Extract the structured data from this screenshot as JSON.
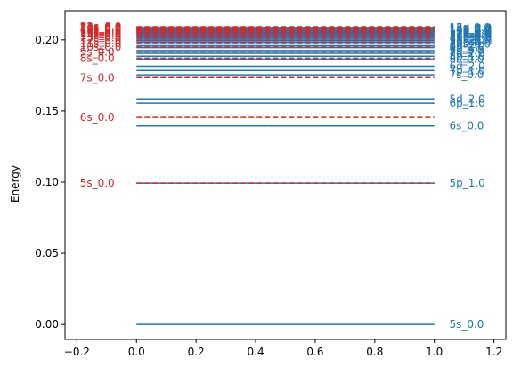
{
  "chart_data": {
    "type": "line",
    "title": "",
    "xlabel": "",
    "ylabel": "Energy",
    "xlim": [
      -0.24,
      1.24
    ],
    "ylim": [
      -0.0105,
      0.2205
    ],
    "grid": false,
    "legend": "none",
    "xticks": [
      -0.2,
      0.0,
      0.2,
      0.4,
      0.6,
      0.8,
      1.0,
      1.2
    ],
    "xtick_labels": [
      "−0.2",
      "0.0",
      "0.2",
      "0.4",
      "0.6",
      "0.8",
      "1.0",
      "1.2"
    ],
    "yticks": [
      0.0,
      0.05,
      0.1,
      0.15,
      0.2
    ],
    "ytick_labels": [
      "0.00",
      "0.05",
      "0.10",
      "0.15",
      "0.20"
    ],
    "colors": {
      "blue": "#1f77b4",
      "red": "#d62728"
    },
    "series": [
      {
        "color": "#1f77b4",
        "style": "solid",
        "x": [
          0.0,
          1.0
        ],
        "label_x": 1.05,
        "levels": [
          {
            "label": "5s_0.0",
            "y": 0.0
          },
          {
            "label": "5p_1.0",
            "y": 0.0993
          },
          {
            "label": "6s_0.0",
            "y": 0.1395
          },
          {
            "label": "6p_1.0",
            "y": 0.1555
          },
          {
            "label": "5d_2.0",
            "y": 0.1585
          },
          {
            "label": "7s_0.0",
            "y": 0.1755
          },
          {
            "label": "7p_1.0",
            "y": 0.1785
          },
          {
            "label": "6d_2.0",
            "y": 0.1815
          },
          {
            "label": "8s_0.0",
            "y": 0.1865
          },
          {
            "label": "8p_1.0",
            "y": 0.1885
          },
          {
            "label": "7d_2.0",
            "y": 0.1905
          },
          {
            "label": "9s_0.0",
            "y": 0.1925
          },
          {
            "label": "9p_1.0",
            "y": 0.1945
          },
          {
            "label": "8d_2.0",
            "y": 0.1958
          },
          {
            "label": "10s_0.0",
            "y": 0.1972
          },
          {
            "label": "10p_1.0",
            "y": 0.1985
          },
          {
            "label": "9d_2.0",
            "y": 0.1996
          },
          {
            "label": "11s_0.0",
            "y": 0.2006
          },
          {
            "label": "11p_1.0",
            "y": 0.2015
          },
          {
            "label": "10d_2.0",
            "y": 0.2024
          },
          {
            "label": "12s_0.0",
            "y": 0.2032
          },
          {
            "label": "12p_1.0",
            "y": 0.204
          },
          {
            "label": "11d_2.0",
            "y": 0.2047
          },
          {
            "label": "13s_0.0",
            "y": 0.2054
          },
          {
            "label": "13p_1.0",
            "y": 0.206
          },
          {
            "label": "12d_2.0",
            "y": 0.2066
          },
          {
            "label": "14s_0.0",
            "y": 0.2072
          },
          {
            "label": "14p_1.0",
            "y": 0.2077
          },
          {
            "label": "13d_2.0",
            "y": 0.2082
          },
          {
            "label": "15s_0.0",
            "y": 0.2087
          }
        ]
      },
      {
        "color": "#d62728",
        "style": "dashed",
        "x": [
          0.0,
          1.0
        ],
        "label_x": -0.19,
        "levels": [
          {
            "label": "5s_0.0",
            "y": 0.0993
          },
          {
            "label": "6s_0.0",
            "y": 0.1455
          },
          {
            "label": "7s_0.0",
            "y": 0.1735
          },
          {
            "label": "8s_0.0",
            "y": 0.1872
          },
          {
            "label": "9s_0.0",
            "y": 0.1915
          },
          {
            "label": "10s_0.0",
            "y": 0.1948
          },
          {
            "label": "11s_0.0",
            "y": 0.1975
          },
          {
            "label": "12s_0.0",
            "y": 0.1997
          },
          {
            "label": "13s_0.0",
            "y": 0.2015
          },
          {
            "label": "14s_0.0",
            "y": 0.203
          },
          {
            "label": "15s_0.0",
            "y": 0.2043
          },
          {
            "label": "16s_0.0",
            "y": 0.2054
          },
          {
            "label": "17s_0.0",
            "y": 0.2063
          },
          {
            "label": "18s_0.0",
            "y": 0.2071
          },
          {
            "label": "19s_0.0",
            "y": 0.2078
          },
          {
            "label": "20s_0.0",
            "y": 0.2084
          },
          {
            "label": "21s_0.0",
            "y": 0.2089
          },
          {
            "label": "22s_0.0",
            "y": 0.2093
          }
        ]
      }
    ]
  }
}
